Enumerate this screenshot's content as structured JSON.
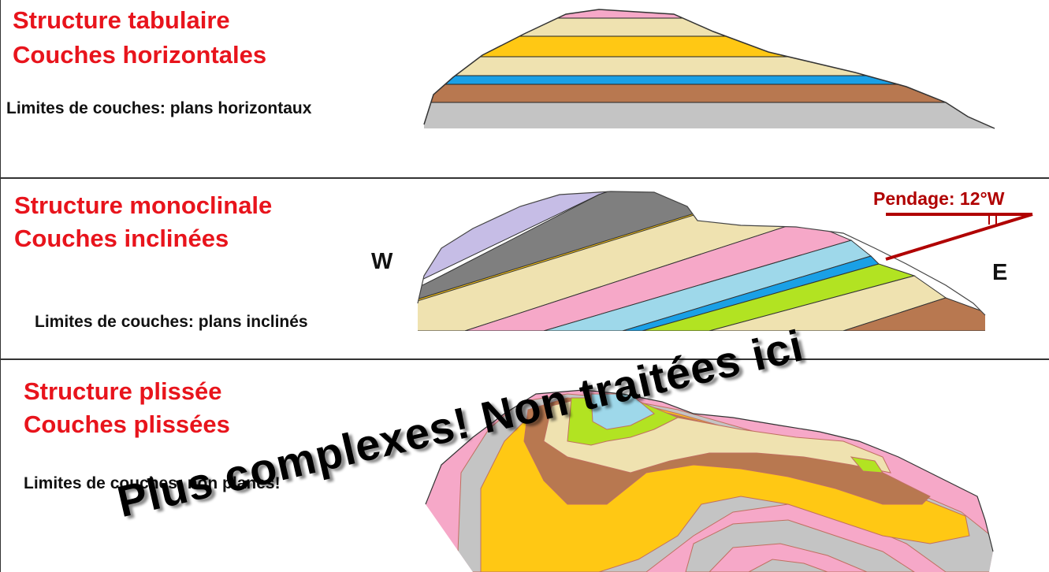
{
  "panels": [
    {
      "title": "Structure tabulaire",
      "subtitle": "Couches horizontales",
      "caption": "Limites de couches: plans horizontaux"
    },
    {
      "title": "Structure monoclinale",
      "subtitle": "Couches inclinées",
      "caption": "Limites de couches: plans inclinés",
      "west": "W",
      "east": "E",
      "dip_label": "Pendage: 12°W"
    },
    {
      "title": "Structure plissée",
      "subtitle": "Couches plissées",
      "caption": "Limites de couches: non planes!"
    }
  ],
  "overlay_text": "Plus complexes! Non traitées ici",
  "colors": {
    "title": "#e8141c",
    "dip_symbol": "#b00000",
    "pink": "#f6a8c8",
    "cream": "#efe2b0",
    "yellow": "#ffc814",
    "blue": "#1aa0e6",
    "light_blue": "#9ed8ea",
    "brown": "#b87850",
    "grey": "#c4c4c4",
    "dark_grey": "#7f7f7f",
    "lavender": "#c6bde6",
    "green": "#b2e322"
  }
}
